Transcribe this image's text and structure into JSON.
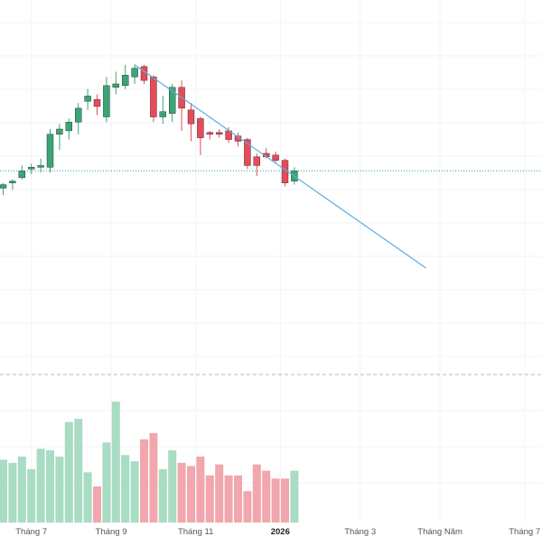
{
  "colors": {
    "up": "#3aa575",
    "down": "#e64b5a",
    "up_volume": "#a8dcc3",
    "down_volume": "#f2a6ad",
    "trendline": "#5aaee0",
    "last_price_line": "#26a69a",
    "grid": "#f0f3fa",
    "separator": "#b2b5be",
    "axis_text": "#555555"
  },
  "chart_data": [
    {
      "type": "candlestick",
      "title": "",
      "xlabel": "",
      "ylabel": "",
      "grid": true,
      "price_ylim": [
        0,
        100
      ],
      "x_tick_labels": [
        {
          "label": "Tháng 7",
          "index": 3,
          "bold": false
        },
        {
          "label": "Tháng 9",
          "index": 11.5,
          "bold": false
        },
        {
          "label": "Tháng 11",
          "index": 20.5,
          "bold": false
        },
        {
          "label": "2026",
          "index": 29.5,
          "bold": true
        },
        {
          "label": "Tháng 3",
          "index": 38,
          "bold": false
        },
        {
          "label": "Tháng Năm",
          "index": 46.5,
          "bold": false
        },
        {
          "label": "Tháng 7",
          "index": 55.5,
          "bold": false
        }
      ],
      "candles": [
        {
          "o": 26,
          "h": 29,
          "l": 22,
          "c": 28
        },
        {
          "o": 29,
          "h": 31,
          "l": 25,
          "c": 30
        },
        {
          "o": 32,
          "h": 39,
          "l": 31,
          "c": 36
        },
        {
          "o": 37,
          "h": 40,
          "l": 34,
          "c": 38
        },
        {
          "o": 38,
          "h": 43,
          "l": 35,
          "c": 39
        },
        {
          "o": 38,
          "h": 60,
          "l": 35,
          "c": 57
        },
        {
          "o": 57,
          "h": 63,
          "l": 48,
          "c": 60
        },
        {
          "o": 59,
          "h": 66,
          "l": 54,
          "c": 64
        },
        {
          "o": 64,
          "h": 75,
          "l": 57,
          "c": 72
        },
        {
          "o": 76,
          "h": 83,
          "l": 71,
          "c": 79
        },
        {
          "o": 77,
          "h": 80,
          "l": 68,
          "c": 73
        },
        {
          "o": 67,
          "h": 90,
          "l": 64,
          "c": 85
        },
        {
          "o": 84,
          "h": 93,
          "l": 80,
          "c": 86
        },
        {
          "o": 85,
          "h": 97,
          "l": 83,
          "c": 91
        },
        {
          "o": 90,
          "h": 97,
          "l": 86,
          "c": 95
        },
        {
          "o": 96,
          "h": 97,
          "l": 86,
          "c": 88
        },
        {
          "o": 90,
          "h": 91,
          "l": 64,
          "c": 67
        },
        {
          "o": 67,
          "h": 79,
          "l": 63,
          "c": 70
        },
        {
          "o": 69,
          "h": 86,
          "l": 64,
          "c": 84
        },
        {
          "o": 84,
          "h": 88,
          "l": 59,
          "c": 72
        },
        {
          "o": 71,
          "h": 75,
          "l": 53,
          "c": 63
        },
        {
          "o": 66,
          "h": 67,
          "l": 45,
          "c": 55
        },
        {
          "o": 58,
          "h": 59,
          "l": 54,
          "c": 57
        },
        {
          "o": 58,
          "h": 60,
          "l": 55,
          "c": 57
        },
        {
          "o": 59,
          "h": 61,
          "l": 52,
          "c": 54
        },
        {
          "o": 56,
          "h": 58,
          "l": 50,
          "c": 53
        },
        {
          "o": 54,
          "h": 55,
          "l": 37,
          "c": 39
        },
        {
          "o": 44,
          "h": 46,
          "l": 33,
          "c": 39
        },
        {
          "o": 46,
          "h": 49,
          "l": 43,
          "c": 44
        },
        {
          "o": 45,
          "h": 47,
          "l": 40,
          "c": 42
        },
        {
          "o": 42,
          "h": 43,
          "l": 27,
          "c": 29
        },
        {
          "o": 30,
          "h": 38,
          "l": 28,
          "c": 36
        }
      ],
      "volume": [
        40,
        38,
        42,
        34,
        47,
        46,
        42,
        64,
        66,
        32,
        23,
        51,
        77,
        43,
        39,
        53,
        57,
        34,
        46,
        38,
        36,
        42,
        30,
        37,
        30,
        30,
        20,
        37,
        33,
        28,
        28,
        33
      ],
      "volume_ylim": [
        0,
        100
      ],
      "last_price": 36,
      "trendline": {
        "from": {
          "index": 14,
          "value": 97
        },
        "to": {
          "index": 45,
          "value": -20
        }
      }
    }
  ]
}
